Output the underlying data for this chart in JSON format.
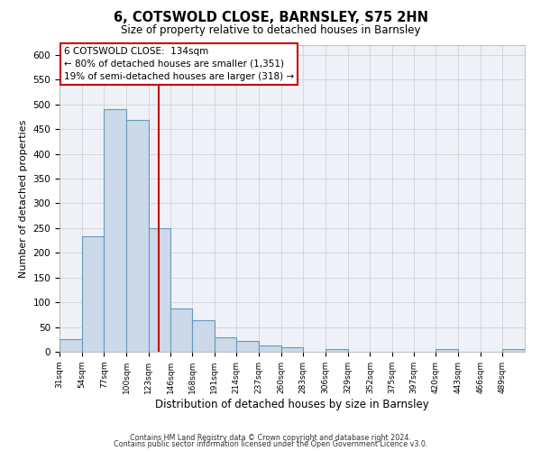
{
  "title": "6, COTSWOLD CLOSE, BARNSLEY, S75 2HN",
  "subtitle": "Size of property relative to detached houses in Barnsley",
  "xlabel": "Distribution of detached houses by size in Barnsley",
  "ylabel": "Number of detached properties",
  "bin_labels": [
    "31sqm",
    "54sqm",
    "77sqm",
    "100sqm",
    "123sqm",
    "146sqm",
    "168sqm",
    "191sqm",
    "214sqm",
    "237sqm",
    "260sqm",
    "283sqm",
    "306sqm",
    "329sqm",
    "352sqm",
    "375sqm",
    "397sqm",
    "420sqm",
    "443sqm",
    "466sqm",
    "489sqm"
  ],
  "bar_values": [
    25,
    233,
    490,
    468,
    250,
    88,
    63,
    30,
    22,
    13,
    10,
    0,
    5,
    0,
    0,
    0,
    0,
    5,
    0,
    0,
    5
  ],
  "bar_color": "#ccd9e8",
  "bar_edge_color": "#6699bb",
  "grid_color": "#cccccc",
  "background_color": "#eef2f8",
  "annotation_line1": "6 COTSWOLD CLOSE:  134sqm",
  "annotation_line2": "← 80% of detached houses are smaller (1,351)",
  "annotation_line3": "19% of semi-detached houses are larger (318) →",
  "annotation_box_edge_color": "#cc0000",
  "vline_color": "#cc0000",
  "ylim": [
    0,
    620
  ],
  "yticks": [
    0,
    50,
    100,
    150,
    200,
    250,
    300,
    350,
    400,
    450,
    500,
    550,
    600
  ],
  "footer_line1": "Contains HM Land Registry data © Crown copyright and database right 2024.",
  "footer_line2": "Contains public sector information licensed under the Open Government Licence v3.0.",
  "bin_edges": [
    31,
    54,
    77,
    100,
    123,
    146,
    168,
    191,
    214,
    237,
    260,
    283,
    306,
    329,
    352,
    375,
    397,
    420,
    443,
    466,
    489,
    512
  ],
  "property_size_sqm": 134
}
